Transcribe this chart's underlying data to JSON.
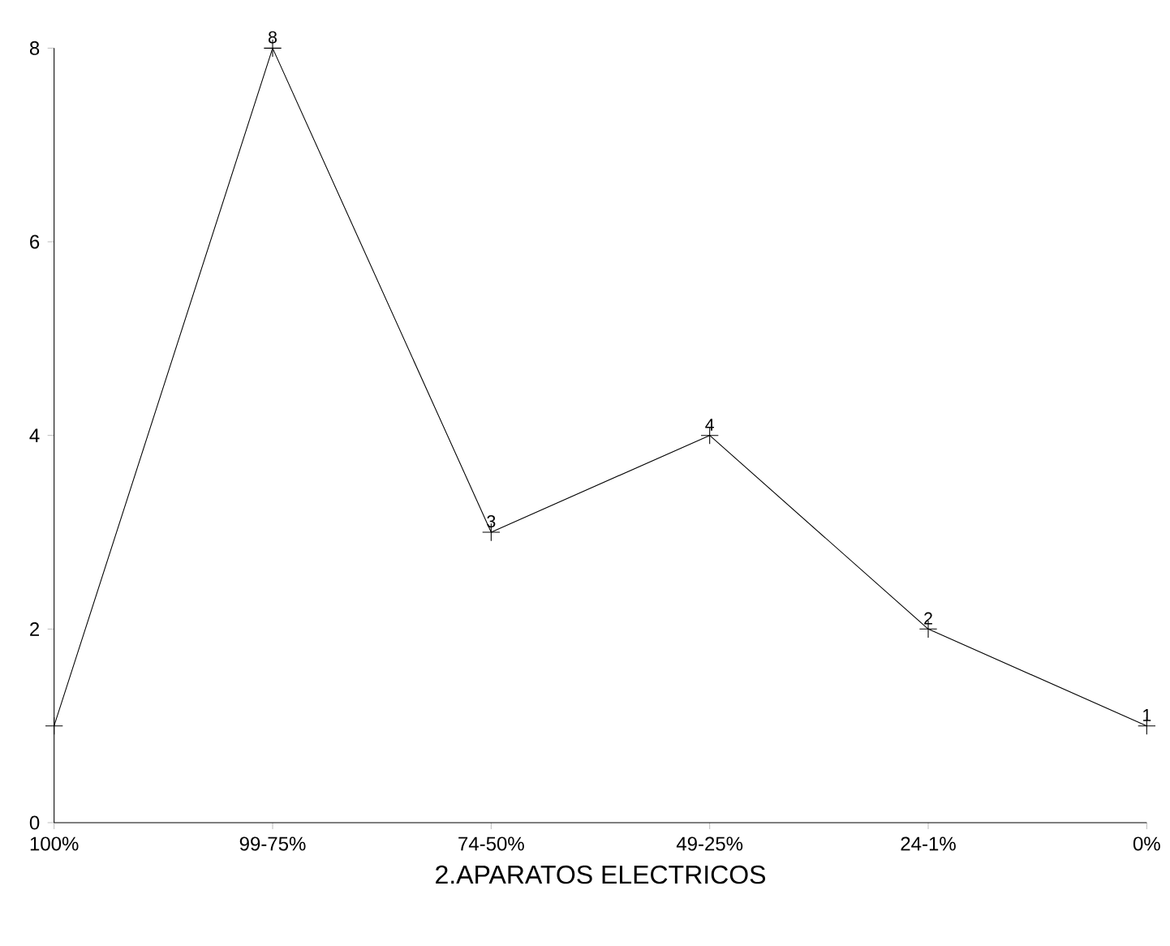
{
  "chart_data": {
    "type": "line",
    "xlabel": "2.APARATOS ELECTRICOS",
    "categories": [
      "100%",
      "99-75%",
      "74-50%",
      "49-25%",
      "24-1%",
      "0%"
    ],
    "values": [
      1,
      8,
      3,
      4,
      2,
      1
    ],
    "value_labels": [
      null,
      "8",
      "3",
      "4",
      "2",
      "1"
    ],
    "color": "#000000",
    "marker": "cross",
    "line_style": "solid",
    "ylim": [
      0,
      8
    ],
    "yticks": [
      0,
      2,
      4,
      6,
      8
    ]
  }
}
